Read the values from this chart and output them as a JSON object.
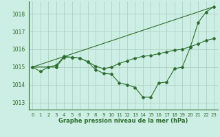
{
  "background_color": "#cceee4",
  "grid_color": "#aaccbb",
  "line_color": "#2d6e2d",
  "line1_x": [
    0,
    1,
    2,
    3,
    4,
    5,
    6,
    7,
    8,
    9,
    10,
    11,
    12,
    13,
    14,
    15,
    16,
    17,
    18,
    19,
    20,
    21,
    22,
    23
  ],
  "line1_y": [
    1015.0,
    1014.75,
    1015.0,
    1015.1,
    1015.6,
    1015.55,
    1015.5,
    1015.3,
    1014.85,
    1014.65,
    1014.6,
    1014.1,
    1014.0,
    1013.85,
    1013.3,
    1013.3,
    1014.1,
    1014.15,
    1014.9,
    1015.0,
    1016.1,
    1017.5,
    1018.1,
    1018.4
  ],
  "line2_x": [
    0,
    3,
    4,
    5,
    6,
    7,
    8,
    9,
    10,
    11,
    12,
    13,
    14,
    15,
    16,
    17,
    18,
    19,
    20,
    21,
    22,
    23
  ],
  "line2_y": [
    1015.0,
    1015.0,
    1015.55,
    1015.55,
    1015.5,
    1015.3,
    1015.05,
    1014.9,
    1015.0,
    1015.2,
    1015.35,
    1015.5,
    1015.6,
    1015.65,
    1015.75,
    1015.85,
    1015.95,
    1016.0,
    1016.15,
    1016.3,
    1016.5,
    1016.6
  ],
  "line3_x": [
    0,
    23
  ],
  "line3_y": [
    1015.0,
    1018.4
  ],
  "ylim": [
    1012.6,
    1018.7
  ],
  "yticks": [
    1013,
    1014,
    1015,
    1016,
    1017,
    1018
  ],
  "xlim": [
    -0.5,
    23.5
  ],
  "xticks": [
    0,
    1,
    2,
    3,
    4,
    5,
    6,
    7,
    8,
    9,
    10,
    11,
    12,
    13,
    14,
    15,
    16,
    17,
    18,
    19,
    20,
    21,
    22,
    23
  ],
  "xlabel": "Graphe pression niveau de la mer (hPa)",
  "marker": "D",
  "markersize": 2.0,
  "linewidth": 0.8,
  "tick_fontsize": 5.0,
  "xlabel_fontsize": 6.0
}
